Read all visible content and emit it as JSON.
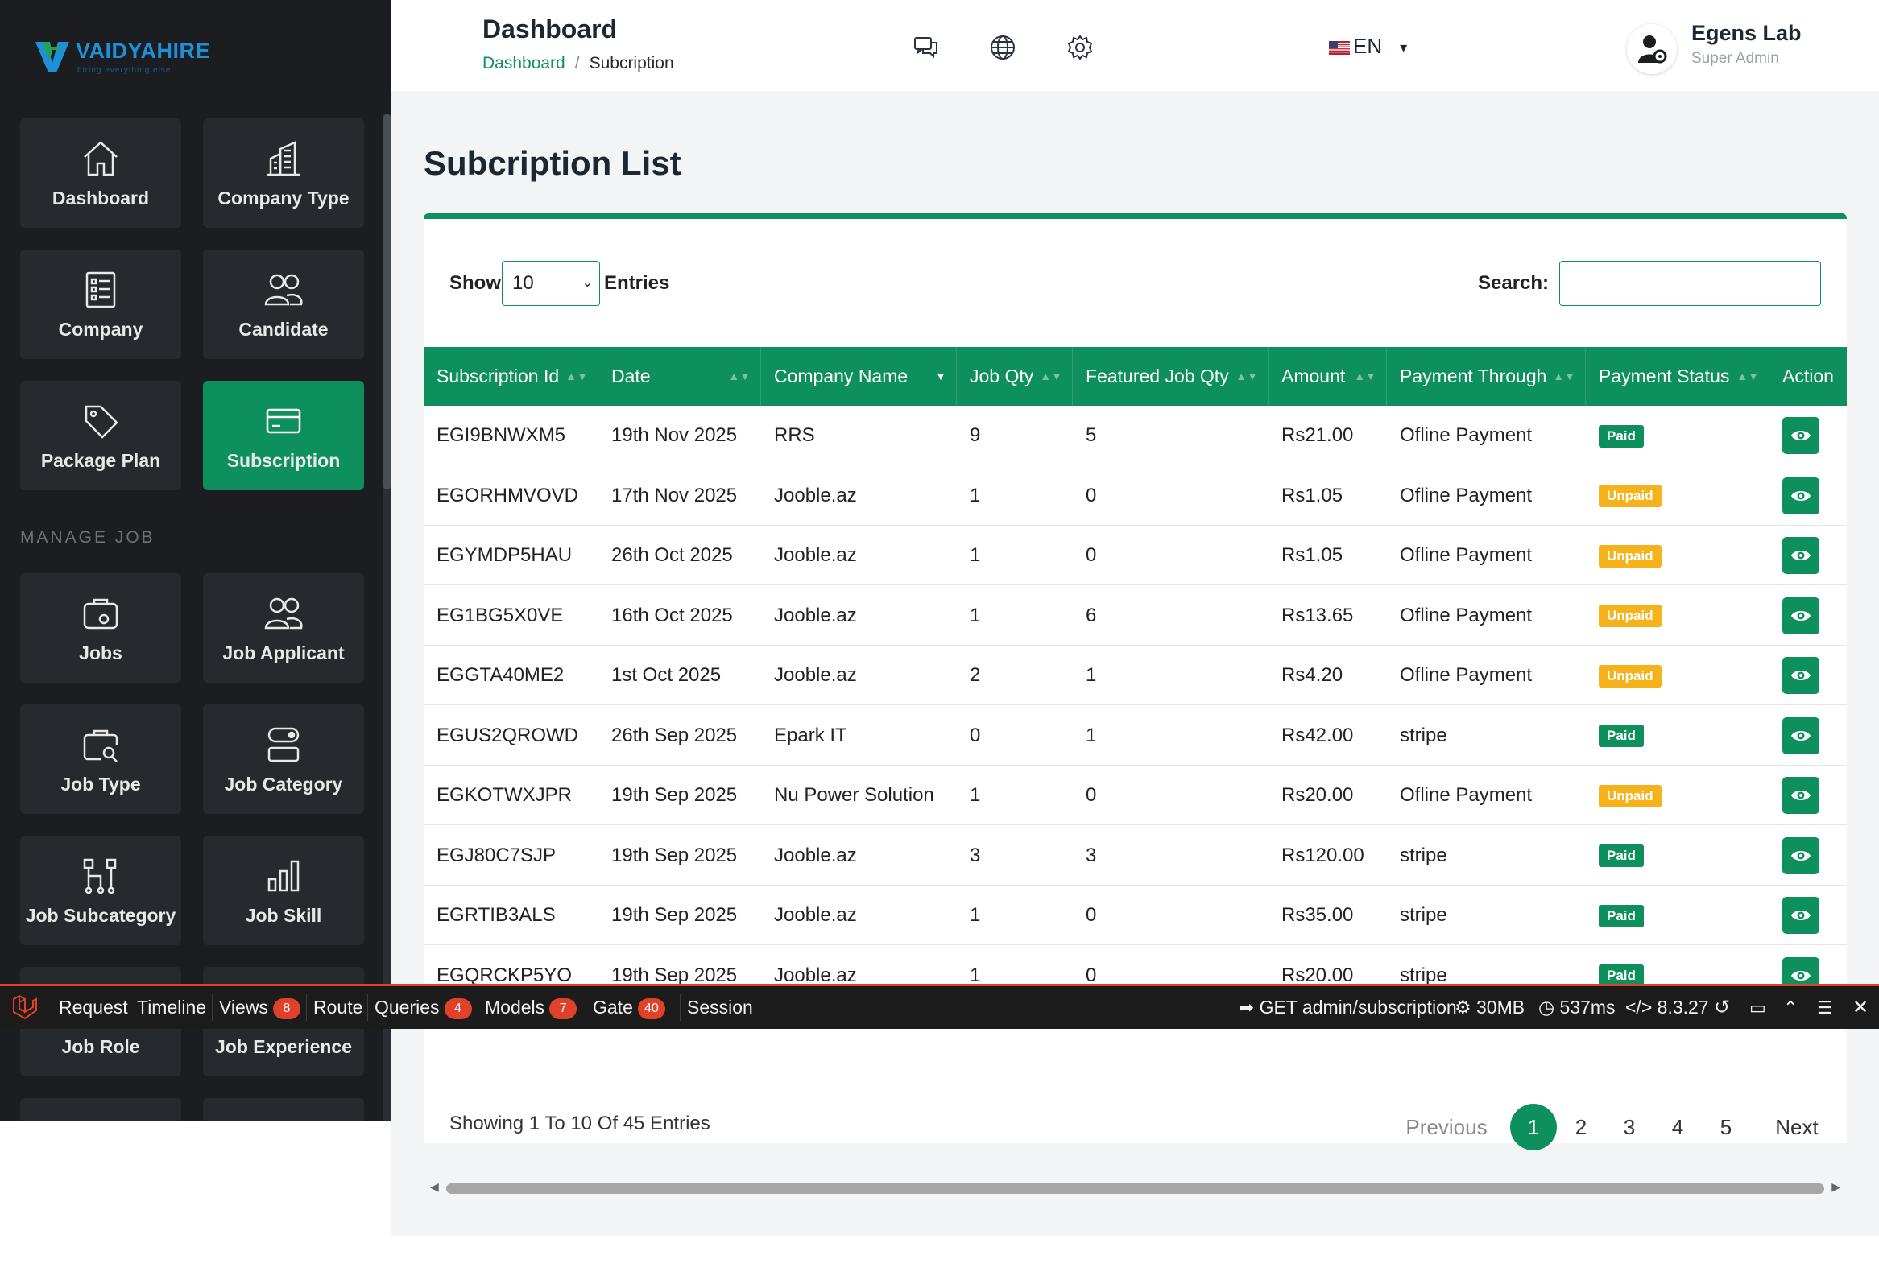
{
  "brand": {
    "name": "VAIDYAHIRE",
    "tagline": "hiring everything else"
  },
  "sidebar": {
    "tiles": [
      {
        "label": "Dashboard",
        "icon": "home-icon"
      },
      {
        "label": "Company Type",
        "icon": "building-icon"
      },
      {
        "label": "Company",
        "icon": "document-list-icon"
      },
      {
        "label": "Candidate",
        "icon": "users-icon"
      },
      {
        "label": "Package Plan",
        "icon": "tag-icon"
      },
      {
        "label": "Subscription",
        "icon": "credit-card-icon",
        "active": true
      },
      {
        "label": "Jobs",
        "icon": "briefcase-icon"
      },
      {
        "label": "Job Applicant",
        "icon": "users-icon"
      },
      {
        "label": "Job Type",
        "icon": "briefcase-search-icon"
      },
      {
        "label": "Job Category",
        "icon": "category-icon"
      },
      {
        "label": "Job Subcategory",
        "icon": "hierarchy-icon"
      },
      {
        "label": "Job Skill",
        "icon": "bar-chart-icon"
      },
      {
        "label": "Job Role",
        "icon": "role-icon"
      },
      {
        "label": "Job Experience",
        "icon": "experience-icon"
      }
    ],
    "section_manage_job": "MANAGE JOB"
  },
  "header": {
    "title": "Dashboard",
    "breadcrumb": {
      "home": "Dashboard",
      "current": "Subcription"
    },
    "language": "EN",
    "user": {
      "name": "Egens Lab",
      "role": "Super Admin"
    }
  },
  "main": {
    "title": "Subcription List",
    "show_label": "Show",
    "entries_value": "10",
    "entries_label": "Entries",
    "search_label": "Search:",
    "columns": [
      "Subscription Id",
      "Date",
      "Company Name",
      "Job Qty",
      "Featured Job Qty",
      "Amount",
      "Payment Through",
      "Payment Status",
      "Action"
    ],
    "rows": [
      {
        "id": "EGI9BNWXM5",
        "date": "19th Nov 2025",
        "company": "RRS",
        "job_qty": "9",
        "featured_qty": "5",
        "amount": "Rs21.00",
        "through": "Ofline Payment",
        "status": "Paid"
      },
      {
        "id": "EGORHMVOVD",
        "date": "17th Nov 2025",
        "company": "Jooble.az",
        "job_qty": "1",
        "featured_qty": "0",
        "amount": "Rs1.05",
        "through": "Ofline Payment",
        "status": "Unpaid"
      },
      {
        "id": "EGYMDP5HAU",
        "date": "26th Oct 2025",
        "company": "Jooble.az",
        "job_qty": "1",
        "featured_qty": "0",
        "amount": "Rs1.05",
        "through": "Ofline Payment",
        "status": "Unpaid"
      },
      {
        "id": "EG1BG5X0VE",
        "date": "16th Oct 2025",
        "company": "Jooble.az",
        "job_qty": "1",
        "featured_qty": "6",
        "amount": "Rs13.65",
        "through": "Ofline Payment",
        "status": "Unpaid"
      },
      {
        "id": "EGGTA40ME2",
        "date": "1st Oct 2025",
        "company": "Jooble.az",
        "job_qty": "2",
        "featured_qty": "1",
        "amount": "Rs4.20",
        "through": "Ofline Payment",
        "status": "Unpaid"
      },
      {
        "id": "EGUS2QROWD",
        "date": "26th Sep 2025",
        "company": "Epark IT",
        "job_qty": "0",
        "featured_qty": "1",
        "amount": "Rs42.00",
        "through": "stripe",
        "status": "Paid"
      },
      {
        "id": "EGKOTWXJPR",
        "date": "19th Sep 2025",
        "company": "Nu Power Solution",
        "job_qty": "1",
        "featured_qty": "0",
        "amount": "Rs20.00",
        "through": "Ofline Payment",
        "status": "Unpaid"
      },
      {
        "id": "EGJ80C7SJP",
        "date": "19th Sep 2025",
        "company": "Jooble.az",
        "job_qty": "3",
        "featured_qty": "3",
        "amount": "Rs120.00",
        "through": "stripe",
        "status": "Paid"
      },
      {
        "id": "EGRTIB3ALS",
        "date": "19th Sep 2025",
        "company": "Jooble.az",
        "job_qty": "1",
        "featured_qty": "0",
        "amount": "Rs35.00",
        "through": "stripe",
        "status": "Paid"
      },
      {
        "id": "EGQRCKP5YO",
        "date": "19th Sep 2025",
        "company": "Jooble.az",
        "job_qty": "1",
        "featured_qty": "0",
        "amount": "Rs20.00",
        "through": "stripe",
        "status": "Paid"
      }
    ],
    "showing_text": "Showing 1 To 10 Of 45 Entries",
    "pagination": {
      "previous": "Previous",
      "pages": [
        "1",
        "2",
        "3",
        "4",
        "5"
      ],
      "current": "1",
      "next": "Next"
    }
  },
  "debugbar": {
    "tabs": [
      {
        "label": "Request"
      },
      {
        "label": "Timeline"
      },
      {
        "label": "Views",
        "count": "8"
      },
      {
        "label": "Route"
      },
      {
        "label": "Queries",
        "count": "4"
      },
      {
        "label": "Models",
        "count": "7"
      },
      {
        "label": "Gate",
        "count": "40"
      },
      {
        "label": "Session"
      }
    ],
    "route": "GET admin/subscription",
    "memory": "30MB",
    "time": "537ms",
    "php_version": "8.3.27"
  },
  "colors": {
    "accent": "#0e8f5e",
    "sidebar_bg": "#1b1d20",
    "tile_bg": "#26292d",
    "unpaid": "#f6b21b",
    "debugbar_accent": "#e0412b"
  }
}
